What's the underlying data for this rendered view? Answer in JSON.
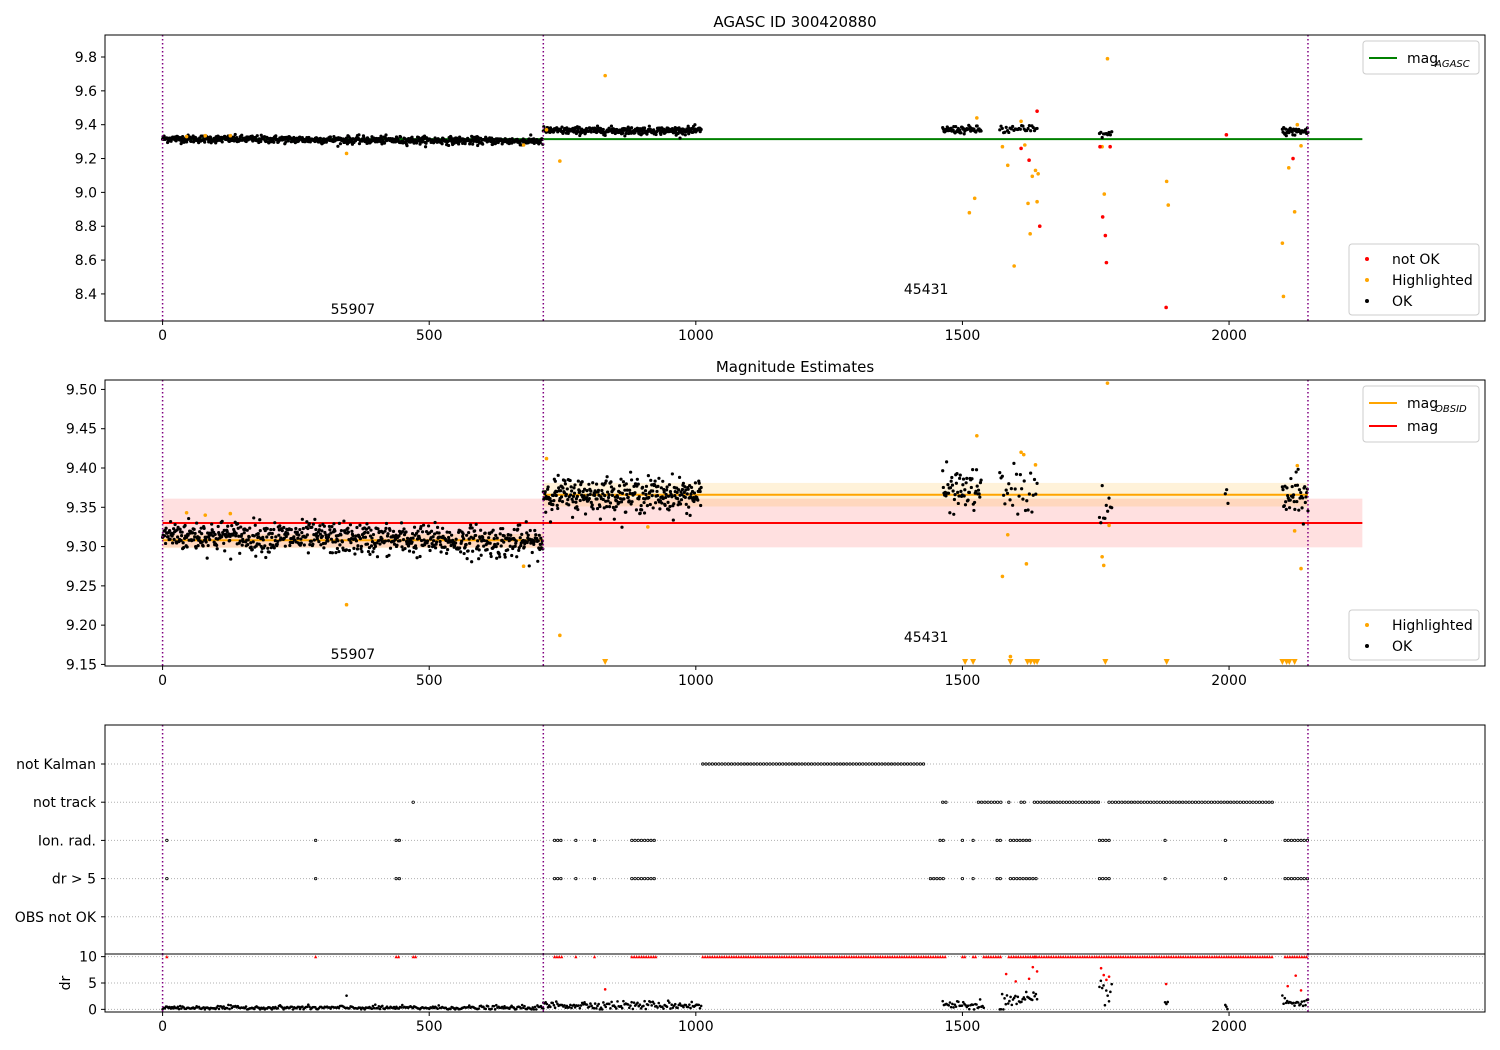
{
  "chart_data": [
    {
      "id": "top",
      "type": "scatter",
      "title": "AGASC ID 300420880",
      "xlim": [
        -108,
        2480
      ],
      "ylim": [
        8.24,
        9.93
      ],
      "xticks": [
        0,
        500,
        1000,
        1500,
        2000
      ],
      "yticks": [
        8.4,
        8.6,
        8.8,
        9.0,
        9.2,
        9.4,
        9.6,
        9.8
      ],
      "ytick_labels": [
        "8.4",
        "8.6",
        "8.8",
        "9.0",
        "9.2",
        "9.4",
        "9.6",
        "9.8"
      ],
      "vlines": [
        0,
        714,
        2148
      ],
      "vline_color": "#800080",
      "obsid_labels": [
        {
          "text": "55907",
          "x": 357,
          "y": 8.31
        },
        {
          "text": "45431",
          "x": 1432,
          "y": 8.43
        }
      ],
      "legend_upper": [
        {
          "label": "mag",
          "sub": "AGASC",
          "color": "#008000",
          "kind": "line"
        }
      ],
      "legend_lower": [
        {
          "label": "not OK",
          "color": "#ff0000",
          "kind": "dot"
        },
        {
          "label": "Highlighted",
          "color": "#ffa500",
          "kind": "dot"
        },
        {
          "label": "OK",
          "color": "#000000",
          "kind": "dot"
        }
      ],
      "hlines": [
        {
          "y": 9.315,
          "x0": 0,
          "x1": 2250,
          "color": "#008000"
        }
      ],
      "bands": [],
      "ok_segments": [
        {
          "x0": 0,
          "x1": 713,
          "mean": 9.31,
          "std": 0.011,
          "color": "#000000",
          "n": 760,
          "slope": -0.015
        },
        {
          "x0": 714,
          "x1": 1010,
          "mean": 9.365,
          "std": 0.011,
          "color": "#000000",
          "n": 330,
          "slope": 0
        },
        {
          "x0": 1463,
          "x1": 1535,
          "mean": 9.37,
          "std": 0.011,
          "color": "#000000",
          "n": 60,
          "slope": 0
        },
        {
          "x0": 1570,
          "x1": 1640,
          "mean": 9.37,
          "std": 0.015,
          "color": "#000000",
          "n": 30,
          "slope": 0
        },
        {
          "x0": 1757,
          "x1": 1780,
          "mean": 9.345,
          "std": 0.01,
          "color": "#000000",
          "n": 10,
          "slope": 0
        },
        {
          "x0": 2100,
          "x1": 2148,
          "mean": 9.36,
          "std": 0.012,
          "color": "#000000",
          "n": 40,
          "slope": 0
        }
      ],
      "highlighted": [
        [
          45,
          9.33
        ],
        [
          80,
          9.335
        ],
        [
          127,
          9.335
        ],
        [
          345,
          9.23
        ],
        [
          677,
          9.28
        ],
        [
          720,
          9.37
        ],
        [
          745,
          9.185
        ],
        [
          830,
          9.69
        ],
        [
          1513,
          8.88
        ],
        [
          1523,
          8.965
        ],
        [
          1527,
          9.44
        ],
        [
          1575,
          9.27
        ],
        [
          1585,
          9.16
        ],
        [
          1597,
          8.565
        ],
        [
          1610,
          9.42
        ],
        [
          1617,
          9.28
        ],
        [
          1623,
          8.935
        ],
        [
          1627,
          8.755
        ],
        [
          1631,
          9.095
        ],
        [
          1637,
          9.13
        ],
        [
          1640,
          8.945
        ],
        [
          1642,
          9.11
        ],
        [
          1762,
          9.27
        ],
        [
          1766,
          8.99
        ],
        [
          1772,
          9.79
        ],
        [
          1883,
          9.065
        ],
        [
          1886,
          8.925
        ],
        [
          2100,
          8.7
        ],
        [
          2102,
          8.385
        ],
        [
          2112,
          9.145
        ],
        [
          2123,
          8.885
        ],
        [
          2128,
          9.4
        ],
        [
          2135,
          9.275
        ]
      ],
      "not_ok": [
        [
          1610,
          9.26
        ],
        [
          1625,
          9.19
        ],
        [
          1640,
          9.48
        ],
        [
          1645,
          8.8
        ],
        [
          1758,
          9.27
        ],
        [
          1763,
          8.855
        ],
        [
          1768,
          8.745
        ],
        [
          1770,
          8.585
        ],
        [
          1777,
          9.27
        ],
        [
          1882,
          8.32
        ],
        [
          1995,
          9.34
        ],
        [
          2120,
          9.2
        ]
      ]
    },
    {
      "id": "mid",
      "type": "scatter",
      "title": "Magnitude Estimates",
      "xlim": [
        -108,
        2480
      ],
      "ylim": [
        9.148,
        9.512
      ],
      "xticks": [
        0,
        500,
        1000,
        1500,
        2000
      ],
      "yticks": [
        9.15,
        9.2,
        9.25,
        9.3,
        9.35,
        9.4,
        9.45,
        9.5
      ],
      "ytick_labels": [
        "9.15",
        "9.20",
        "9.25",
        "9.30",
        "9.35",
        "9.40",
        "9.45",
        "9.50"
      ],
      "vlines": [
        0,
        714,
        2148
      ],
      "vline_color": "#800080",
      "obsid_labels": [
        {
          "text": "55907",
          "x": 357,
          "y": 9.163
        },
        {
          "text": "45431",
          "x": 1432,
          "y": 9.185
        }
      ],
      "legend_upper": [
        {
          "label": "mag",
          "sub": "OBSID",
          "color": "#ffa500",
          "kind": "line"
        },
        {
          "label": "mag",
          "sub": "",
          "color": "#ff0000",
          "kind": "line"
        }
      ],
      "legend_lower": [
        {
          "label": "Highlighted",
          "color": "#ffa500",
          "kind": "dot"
        },
        {
          "label": "OK",
          "color": "#000000",
          "kind": "dot"
        }
      ],
      "bands": [
        {
          "x0": 0,
          "x1": 2250,
          "y0": 9.299,
          "y1": 9.361,
          "color": "#ff0000",
          "opacity": 0.12
        },
        {
          "x0": 0,
          "x1": 714,
          "y0": 9.298,
          "y1": 9.316,
          "color": "#ffa500",
          "opacity": 0.15
        },
        {
          "x0": 714,
          "x1": 2148,
          "y0": 9.351,
          "y1": 9.381,
          "color": "#ffa500",
          "opacity": 0.15
        }
      ],
      "hlines": [
        {
          "y": 9.33,
          "x0": 0,
          "x1": 2250,
          "color": "#ff0000"
        },
        {
          "y": 9.308,
          "x0": 0,
          "x1": 714,
          "color": "#ffa500"
        },
        {
          "y": 9.366,
          "x0": 714,
          "x1": 2148,
          "color": "#ffa500"
        }
      ],
      "ok_segments": [
        {
          "x0": 0,
          "x1": 713,
          "mean": 9.31,
          "std": 0.01,
          "color": "#000000",
          "n": 760,
          "slope": -0.01
        },
        {
          "x0": 714,
          "x1": 1010,
          "mean": 9.366,
          "std": 0.011,
          "color": "#000000",
          "n": 330,
          "slope": 0
        },
        {
          "x0": 1463,
          "x1": 1535,
          "mean": 9.372,
          "std": 0.013,
          "color": "#000000",
          "n": 60,
          "slope": 0
        },
        {
          "x0": 1570,
          "x1": 1640,
          "mean": 9.37,
          "std": 0.016,
          "color": "#000000",
          "n": 30,
          "slope": 0
        },
        {
          "x0": 1757,
          "x1": 1780,
          "mean": 9.345,
          "std": 0.012,
          "color": "#000000",
          "n": 10,
          "slope": 0
        },
        {
          "x0": 1993,
          "x1": 1998,
          "mean": 9.365,
          "std": 0.01,
          "color": "#000000",
          "n": 3,
          "slope": 0
        },
        {
          "x0": 2100,
          "x1": 2148,
          "mean": 9.362,
          "std": 0.014,
          "color": "#000000",
          "n": 40,
          "slope": 0
        }
      ],
      "highlighted": [
        [
          45,
          9.343
        ],
        [
          80,
          9.34
        ],
        [
          127,
          9.342
        ],
        [
          345,
          9.226
        ],
        [
          677,
          9.275
        ],
        [
          720,
          9.412
        ],
        [
          745,
          9.187
        ],
        [
          910,
          9.325
        ],
        [
          1527,
          9.441
        ],
        [
          1575,
          9.262
        ],
        [
          1585,
          9.315
        ],
        [
          1590,
          9.16
        ],
        [
          1610,
          9.42
        ],
        [
          1615,
          9.417
        ],
        [
          1620,
          9.278
        ],
        [
          1637,
          9.404
        ],
        [
          1762,
          9.287
        ],
        [
          1765,
          9.276
        ],
        [
          1772,
          9.508
        ],
        [
          1775,
          9.327
        ],
        [
          2123,
          9.32
        ],
        [
          2128,
          9.403
        ],
        [
          2135,
          9.272
        ]
      ],
      "triangles": [
        830,
        1505,
        1520,
        1590,
        1622,
        1628,
        1635,
        1640,
        1768,
        1883,
        2100,
        2108,
        2113,
        2123
      ],
      "triangle_y": 9.151
    },
    {
      "id": "flags",
      "type": "scatter",
      "xlim": [
        -108,
        2480
      ],
      "categories": [
        "not Kalman",
        "not track",
        "Ion. rad.",
        "dr > 5",
        "OBS not OK"
      ],
      "vlines": [
        0,
        714,
        2148
      ],
      "vline_color": "#800080",
      "ranges": {
        "not Kalman": [
          [
            1013,
            1433
          ]
        ],
        "not track": [
          [
            470,
            475
          ],
          [
            1463,
            1470
          ],
          [
            1530,
            1572
          ],
          [
            1587,
            1592
          ],
          [
            1610,
            1617
          ],
          [
            1635,
            1760
          ],
          [
            1775,
            2085
          ]
        ],
        "Ion. rad.": [
          [
            8,
            10
          ],
          [
            287,
            289
          ],
          [
            438,
            446
          ],
          [
            735,
            750
          ],
          [
            775,
            778
          ],
          [
            810,
            812
          ],
          [
            880,
            925
          ],
          [
            1458,
            1468
          ],
          [
            1500,
            1505
          ],
          [
            1520,
            1525
          ],
          [
            1565,
            1575
          ],
          [
            1590,
            1630
          ],
          [
            1757,
            1780
          ],
          [
            1880,
            1885
          ],
          [
            1993,
            1997
          ],
          [
            2105,
            2148
          ]
        ],
        "dr > 5": [
          [
            8,
            10
          ],
          [
            287,
            289
          ],
          [
            438,
            446
          ],
          [
            735,
            750
          ],
          [
            775,
            778
          ],
          [
            810,
            812
          ],
          [
            880,
            925
          ],
          [
            1440,
            1468
          ],
          [
            1500,
            1505
          ],
          [
            1520,
            1525
          ],
          [
            1565,
            1575
          ],
          [
            1590,
            1640
          ],
          [
            1757,
            1780
          ],
          [
            1880,
            1885
          ],
          [
            1993,
            1997
          ],
          [
            2105,
            2148
          ]
        ],
        "OBS not OK": []
      }
    },
    {
      "id": "dr",
      "type": "scatter",
      "ylabel": "dr",
      "xlim": [
        -108,
        2480
      ],
      "ylim": [
        -0.5,
        10.5
      ],
      "xticks": [
        0,
        500,
        1000,
        1500,
        2000
      ],
      "yticks": [
        0,
        5,
        10
      ],
      "ytick_labels": [
        "0",
        "5",
        "10"
      ],
      "vlines": [
        0,
        714,
        2148
      ],
      "vline_color": "#800080",
      "ok_ranges": [
        [
          0,
          714,
          0.3,
          0.2
        ],
        [
          714,
          1010,
          0.8,
          0.4
        ],
        [
          1463,
          1540,
          0.8,
          0.5
        ],
        [
          1570,
          1640,
          1.4,
          0.9
        ],
        [
          1757,
          1780,
          3.6,
          1.2
        ],
        [
          1880,
          1885,
          1.2,
          0.3
        ],
        [
          1993,
          1997,
          0.5,
          0.3
        ],
        [
          2100,
          2148,
          1.2,
          0.5
        ]
      ],
      "not_ok_top": [
        [
          8,
          10
        ],
        [
          287,
          289
        ],
        [
          438,
          446
        ],
        [
          470,
          475
        ],
        [
          735,
          750
        ],
        [
          775,
          778
        ],
        [
          810,
          812
        ],
        [
          880,
          925
        ],
        [
          1013,
          1470
        ],
        [
          1500,
          1505
        ],
        [
          1520,
          1525
        ],
        [
          1540,
          1575
        ],
        [
          1587,
          1640
        ],
        [
          1635,
          2085
        ],
        [
          2105,
          2148
        ]
      ],
      "not_ok_mid": [
        [
          1582,
          6.7
        ],
        [
          1600,
          5.3
        ],
        [
          1625,
          5.8
        ],
        [
          1632,
          8.0
        ],
        [
          1640,
          7.2
        ],
        [
          1760,
          7.8
        ],
        [
          1765,
          6.5
        ],
        [
          1770,
          5.6
        ],
        [
          1775,
          6.2
        ],
        [
          1882,
          4.8
        ],
        [
          2110,
          4.4
        ],
        [
          2125,
          6.4
        ],
        [
          2135,
          3.6
        ],
        [
          830,
          3.8
        ]
      ],
      "annotations": [
        {
          "x": 345,
          "y": 2.6
        }
      ]
    }
  ]
}
